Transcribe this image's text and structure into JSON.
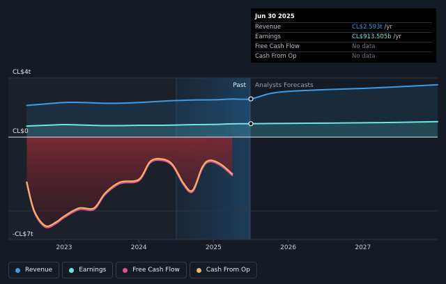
{
  "tooltip": {
    "date": "Jun 30 2025",
    "rows": [
      {
        "name": "Revenue",
        "value": "CL$2.593t",
        "unit": "/yr",
        "color": "#3d9be9"
      },
      {
        "name": "Earnings",
        "value": "CL$913.505b",
        "unit": "/yr",
        "color": "#6ce6e2"
      },
      {
        "name": "Free Cash Flow",
        "value": "No data",
        "unit": "",
        "color": ""
      },
      {
        "name": "Cash From Op",
        "value": "No data",
        "unit": "",
        "color": ""
      }
    ]
  },
  "regions": {
    "past": "Past",
    "forecast": "Analysts Forecasts"
  },
  "legend": [
    {
      "label": "Revenue",
      "color": "#3d9be9"
    },
    {
      "label": "Earnings",
      "color": "#6ce6e2"
    },
    {
      "label": "Free Cash Flow",
      "color": "#e0518f"
    },
    {
      "label": "Cash From Op",
      "color": "#f2b26a"
    }
  ],
  "chart_data": {
    "type": "area",
    "y_unit_labels": [
      "CL$4t",
      "CL$0",
      "-CL$7t"
    ],
    "ylim": [
      -7,
      4
    ],
    "x_ticks": [
      "2023",
      "2024",
      "2025",
      "2026",
      "2027"
    ],
    "divider_date": 2025.5,
    "series": [
      {
        "name": "Revenue",
        "color": "#3d9be9",
        "x": [
          2022.5,
          2022.75,
          2023.0,
          2023.25,
          2023.5,
          2023.75,
          2024.0,
          2024.25,
          2024.5,
          2024.75,
          2025.0,
          2025.25,
          2025.5,
          2025.75,
          2026.0,
          2026.5,
          2027.0,
          2027.5,
          2028.0
        ],
        "values": [
          2.15,
          2.25,
          2.35,
          2.35,
          2.3,
          2.3,
          2.35,
          2.42,
          2.48,
          2.52,
          2.53,
          2.58,
          2.59,
          2.95,
          3.1,
          3.22,
          3.3,
          3.42,
          3.55
        ]
      },
      {
        "name": "Earnings",
        "color": "#6ce6e2",
        "x": [
          2022.5,
          2022.75,
          2023.0,
          2023.25,
          2023.5,
          2023.75,
          2024.0,
          2024.25,
          2024.5,
          2024.75,
          2025.0,
          2025.25,
          2025.5,
          2026.0,
          2026.5,
          2027.0,
          2027.5,
          2028.0
        ],
        "values": [
          0.75,
          0.8,
          0.85,
          0.82,
          0.78,
          0.78,
          0.8,
          0.8,
          0.82,
          0.85,
          0.86,
          0.9,
          0.91,
          0.93,
          0.95,
          0.97,
          1.0,
          1.05
        ]
      },
      {
        "name": "Free Cash Flow",
        "color": "#e0518f",
        "x": [
          2022.5,
          2022.6,
          2022.75,
          2022.9,
          2023.0,
          2023.2,
          2023.4,
          2023.55,
          2023.75,
          2024.0,
          2024.15,
          2024.3,
          2024.45,
          2024.6,
          2024.72,
          2024.85,
          2024.95,
          2025.1,
          2025.25
        ],
        "values": [
          -3.4,
          -5.5,
          -6.6,
          -6.3,
          -5.9,
          -5.3,
          -5.3,
          -4.2,
          -3.4,
          -3.2,
          -1.9,
          -1.7,
          -2.1,
          -3.5,
          -4.0,
          -2.3,
          -1.8,
          -2.1,
          -2.8
        ]
      },
      {
        "name": "Cash From Op",
        "color": "#f2b26a",
        "x": [
          2022.5,
          2022.6,
          2022.75,
          2022.9,
          2023.0,
          2023.2,
          2023.4,
          2023.55,
          2023.75,
          2024.0,
          2024.15,
          2024.3,
          2024.45,
          2024.6,
          2024.72,
          2024.85,
          2024.95,
          2025.1,
          2025.25
        ],
        "values": [
          -3.3,
          -5.4,
          -6.5,
          -6.2,
          -5.8,
          -5.2,
          -5.2,
          -4.1,
          -3.3,
          -3.1,
          -1.8,
          -1.6,
          -2.0,
          -3.4,
          -3.9,
          -2.2,
          -1.7,
          -2.0,
          -2.7
        ]
      }
    ]
  }
}
